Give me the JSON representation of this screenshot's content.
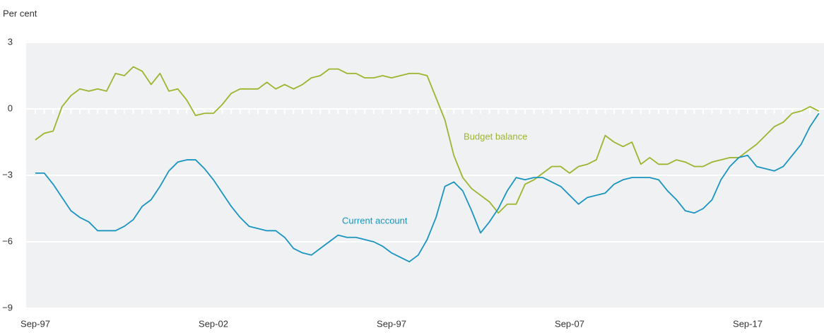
{
  "chart_data": {
    "type": "line",
    "y_label": "Per cent",
    "categories": [
      "Sep-97",
      null,
      null,
      null,
      null,
      null,
      null,
      null,
      null,
      null,
      null,
      null,
      null,
      null,
      null,
      null,
      null,
      null,
      null,
      null,
      "Sep-02",
      null,
      null,
      null,
      null,
      null,
      null,
      null,
      null,
      null,
      null,
      null,
      null,
      null,
      null,
      null,
      null,
      null,
      null,
      null,
      "Sep-97",
      null,
      null,
      null,
      null,
      null,
      null,
      null,
      null,
      null,
      null,
      null,
      null,
      null,
      null,
      null,
      null,
      null,
      null,
      null,
      "Sep-07",
      null,
      null,
      null,
      null,
      null,
      null,
      null,
      null,
      null,
      null,
      null,
      null,
      null,
      null,
      null,
      null,
      null,
      null,
      null,
      "Sep-17",
      null,
      null,
      null,
      null,
      null,
      null,
      null,
      null
    ],
    "series": [
      {
        "name": "Budget balance",
        "color": "#9cb52f",
        "values": [
          -1.4,
          -1.1,
          -1.0,
          0.1,
          0.6,
          0.9,
          0.8,
          0.9,
          0.8,
          1.6,
          1.5,
          1.9,
          1.7,
          1.1,
          1.6,
          0.8,
          0.9,
          0.4,
          -0.3,
          -0.2,
          -0.2,
          0.2,
          0.7,
          0.9,
          0.9,
          0.9,
          1.2,
          0.9,
          1.1,
          0.9,
          1.1,
          1.4,
          1.5,
          1.8,
          1.8,
          1.6,
          1.6,
          1.4,
          1.4,
          1.5,
          1.4,
          1.5,
          1.6,
          1.6,
          1.5,
          0.5,
          -0.5,
          -2.1,
          -3.1,
          -3.6,
          -3.9,
          -4.2,
          -4.7,
          -4.3,
          -4.3,
          -3.4,
          -3.2,
          -2.9,
          -2.6,
          -2.6,
          -2.9,
          -2.6,
          -2.5,
          -2.3,
          -1.2,
          -1.5,
          -1.7,
          -1.5,
          -2.5,
          -2.2,
          -2.5,
          -2.5,
          -2.3,
          -2.4,
          -2.6,
          -2.6,
          -2.4,
          -2.3,
          -2.2,
          -2.2,
          -1.9,
          -1.6,
          -1.2,
          -0.8,
          -0.6,
          -0.2,
          -0.1,
          0.1,
          -0.1
        ]
      },
      {
        "name": "Current account",
        "color": "#1a94c0",
        "values": [
          -2.9,
          -2.9,
          -3.4,
          -4.0,
          -4.6,
          -4.9,
          -5.1,
          -5.5,
          -5.5,
          -5.5,
          -5.3,
          -5.0,
          -4.4,
          -4.1,
          -3.5,
          -2.8,
          -2.4,
          -2.3,
          -2.3,
          -2.7,
          -3.2,
          -3.8,
          -4.4,
          -4.9,
          -5.3,
          -5.4,
          -5.5,
          -5.5,
          -5.8,
          -6.3,
          -6.5,
          -6.6,
          -6.3,
          -6.0,
          -5.7,
          -5.8,
          -5.8,
          -5.9,
          -6.0,
          -6.2,
          -6.5,
          -6.7,
          -6.9,
          -6.6,
          -5.9,
          -4.9,
          -3.5,
          -3.3,
          -3.7,
          -4.6,
          -5.6,
          -5.1,
          -4.5,
          -3.7,
          -3.1,
          -3.2,
          -3.1,
          -3.1,
          -3.3,
          -3.5,
          -3.9,
          -4.3,
          -4.0,
          -3.9,
          -3.8,
          -3.4,
          -3.2,
          -3.1,
          -3.1,
          -3.1,
          -3.2,
          -3.7,
          -4.1,
          -4.6,
          -4.7,
          -4.5,
          -4.1,
          -3.2,
          -2.6,
          -2.2,
          -2.1,
          -2.6,
          -2.7,
          -2.8,
          -2.6,
          -2.1,
          -1.6,
          -0.8,
          -0.2
        ]
      }
    ],
    "ylim": [
      -9,
      3
    ],
    "yticks": [
      3,
      0,
      {
        "value": -3,
        "label": "−3"
      },
      {
        "value": -6,
        "label": "−6"
      },
      {
        "value": -9,
        "label": "−9"
      }
    ],
    "grid": true
  }
}
